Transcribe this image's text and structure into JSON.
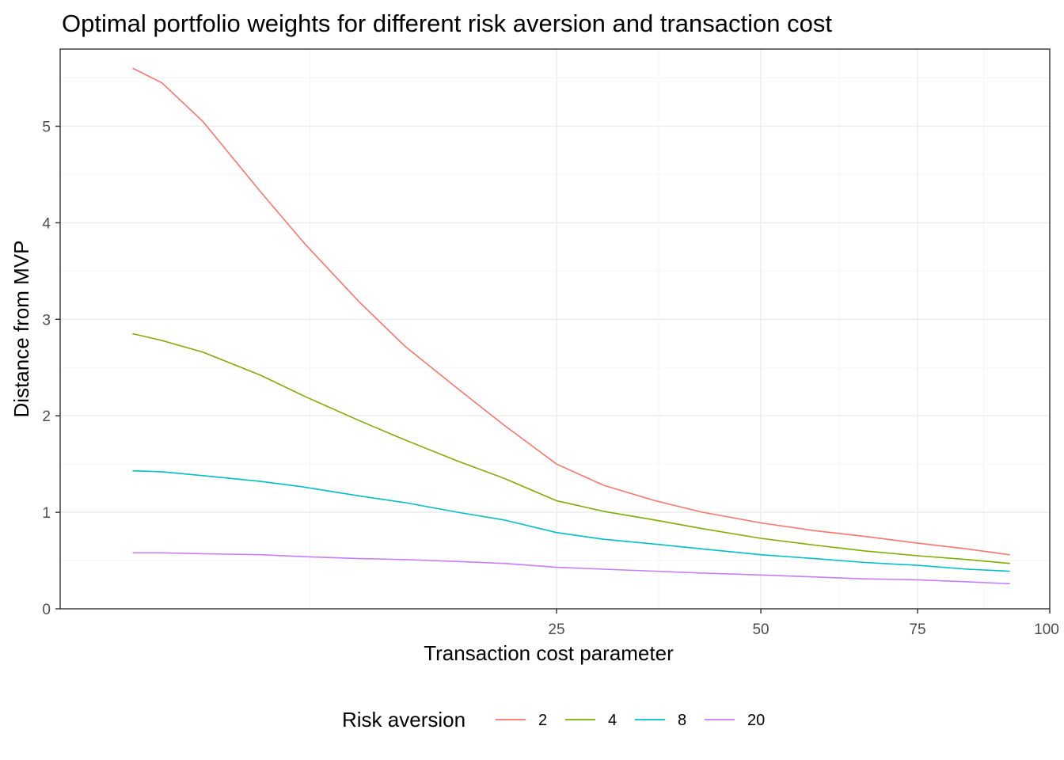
{
  "chart_data": {
    "type": "line",
    "title": "Optimal portfolio weights for different risk aversion and transaction cost",
    "xlabel": "Transaction cost parameter",
    "ylabel": "Distance from MVP",
    "x_scale": "sqrt",
    "xlim": [
      0,
      100
    ],
    "ylim": [
      0,
      5.8
    ],
    "x_ticks": [
      25,
      50,
      75,
      100
    ],
    "x_tick_labels": [
      "25",
      "50",
      "75",
      "100"
    ],
    "y_ticks": [
      0,
      1,
      2,
      3,
      4,
      5
    ],
    "y_tick_labels": [
      "0",
      "1",
      "2",
      "3",
      "4",
      "5"
    ],
    "grid": true,
    "legend": {
      "title": "Risk aversion",
      "position": "bottom"
    },
    "x": [
      0.5,
      1,
      2,
      4,
      6,
      9,
      12,
      16,
      20,
      25,
      30,
      36,
      42,
      50,
      58,
      66,
      75,
      84,
      92
    ],
    "series": [
      {
        "name": "2",
        "color": "#F8766D",
        "values": [
          5.6,
          5.45,
          5.05,
          4.32,
          3.78,
          3.18,
          2.72,
          2.28,
          1.9,
          1.5,
          1.28,
          1.12,
          1.0,
          0.89,
          0.81,
          0.75,
          0.68,
          0.62,
          0.56
        ]
      },
      {
        "name": "4",
        "color": "#7CAE00",
        "values": [
          2.85,
          2.78,
          2.66,
          2.42,
          2.2,
          1.95,
          1.75,
          1.53,
          1.35,
          1.12,
          1.01,
          0.92,
          0.83,
          0.73,
          0.66,
          0.6,
          0.55,
          0.51,
          0.47
        ]
      },
      {
        "name": "8",
        "color": "#00BFC4",
        "values": [
          1.43,
          1.42,
          1.38,
          1.32,
          1.26,
          1.17,
          1.1,
          1.0,
          0.92,
          0.79,
          0.72,
          0.67,
          0.62,
          0.56,
          0.52,
          0.48,
          0.45,
          0.41,
          0.39
        ]
      },
      {
        "name": "20",
        "color": "#C77CFF",
        "values": [
          0.58,
          0.58,
          0.57,
          0.56,
          0.54,
          0.52,
          0.51,
          0.49,
          0.47,
          0.43,
          0.41,
          0.39,
          0.37,
          0.35,
          0.33,
          0.31,
          0.3,
          0.28,
          0.26
        ]
      }
    ]
  }
}
